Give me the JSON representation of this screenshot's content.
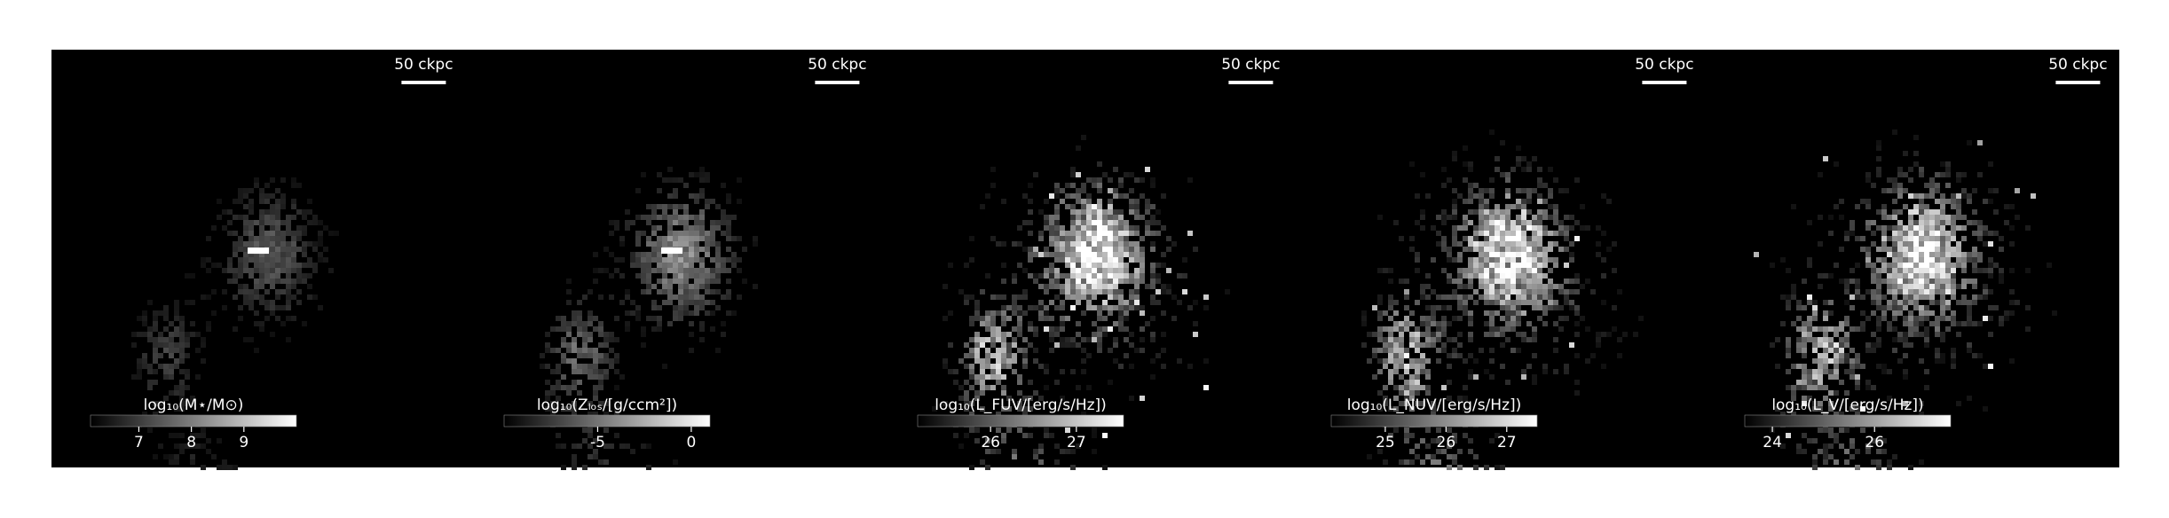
{
  "panels": [
    {
      "scale_label": "50 ckpc",
      "colorbar": {
        "label": "log₁₀(M⋆/M⊙)",
        "lim": [
          6.08,
          10
        ],
        "ticks": [
          7,
          8,
          9
        ]
      }
    },
    {
      "scale_label": "50 ckpc",
      "colorbar": {
        "label": "log₁₀(Zₗₒₛ/[g/ccm²])",
        "lim": [
          -10,
          1
        ],
        "ticks": [
          -5,
          0
        ]
      }
    },
    {
      "scale_label": "50 ckpc",
      "colorbar": {
        "label": "log₁₀(L_FUV/[erg/s/Hz])",
        "lim": [
          25.15,
          27.55
        ],
        "ticks": [
          26,
          27
        ]
      }
    },
    {
      "scale_label": "50 ckpc",
      "colorbar": {
        "label": "log₁₀(L_NUV/[erg/s/Hz])",
        "lim": [
          24.11,
          27.5
        ],
        "ticks": [
          25,
          26,
          27
        ]
      }
    },
    {
      "scale_label": "50 ckpc",
      "colorbar": {
        "label": "log₁₀(L_V/[erg/s/Hz])",
        "lim": [
          23.46,
          27.49
        ],
        "ticks": [
          24,
          26
        ]
      }
    }
  ]
}
